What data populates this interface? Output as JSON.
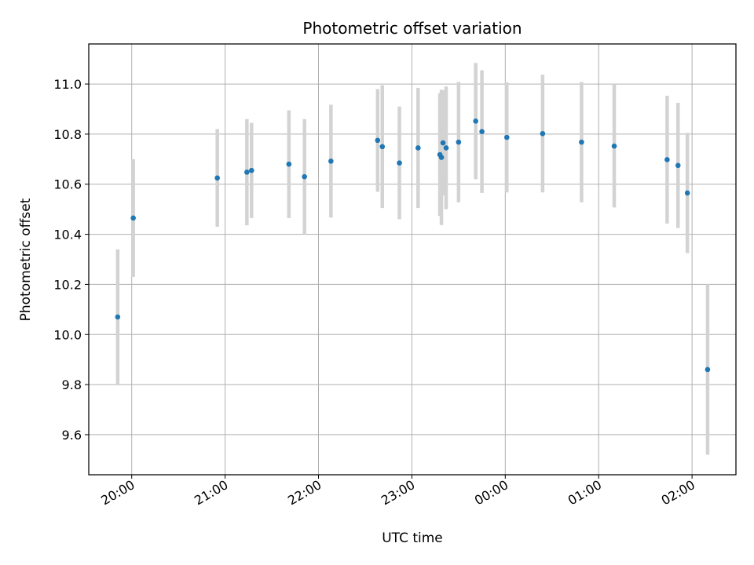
{
  "chart_data": {
    "type": "scatter",
    "title": "Photometric offset variation",
    "xlabel": "UTC time",
    "ylabel": "Photometric offset",
    "x_tick_labels": [
      "20:00",
      "21:00",
      "22:00",
      "23:00",
      "00:00",
      "01:00",
      "02:00"
    ],
    "y_tick_labels": [
      "9.6",
      "9.8",
      "10.0",
      "10.2",
      "10.4",
      "10.6",
      "10.8",
      "11.0"
    ],
    "x_ticks_hours": [
      20,
      21,
      22,
      23,
      24,
      25,
      26
    ],
    "y_ticks": [
      9.6,
      9.8,
      10.0,
      10.2,
      10.4,
      10.6,
      10.8,
      11.0
    ],
    "xlim_hours": [
      19.54,
      26.47
    ],
    "ylim": [
      9.44,
      11.16
    ],
    "grid": true,
    "series": [
      {
        "marker_color": "#1f77b4",
        "errorbar_color": "#d3d3d3",
        "points": [
          {
            "t": "19:51",
            "y": 10.07,
            "err": 0.27
          },
          {
            "t": "20:01",
            "y": 10.465,
            "err": 0.235
          },
          {
            "t": "20:55",
            "y": 10.625,
            "err": 0.195
          },
          {
            "t": "21:14",
            "y": 10.648,
            "err": 0.212
          },
          {
            "t": "21:17",
            "y": 10.655,
            "err": 0.19
          },
          {
            "t": "21:41",
            "y": 10.68,
            "err": 0.215
          },
          {
            "t": "21:51",
            "y": 10.63,
            "err": 0.23
          },
          {
            "t": "22:08",
            "y": 10.692,
            "err": 0.225
          },
          {
            "t": "22:38",
            "y": 10.775,
            "err": 0.205
          },
          {
            "t": "22:41",
            "y": 10.75,
            "err": 0.245
          },
          {
            "t": "22:52",
            "y": 10.685,
            "err": 0.225
          },
          {
            "t": "23:04",
            "y": 10.745,
            "err": 0.24
          },
          {
            "t": "23:18",
            "y": 10.718,
            "err": 0.245
          },
          {
            "t": "23:19",
            "y": 10.707,
            "err": 0.27
          },
          {
            "t": "23:20",
            "y": 10.765,
            "err": 0.21
          },
          {
            "t": "23:22",
            "y": 10.745,
            "err": 0.245
          },
          {
            "t": "23:30",
            "y": 10.768,
            "err": 0.24
          },
          {
            "t": "23:41",
            "y": 10.852,
            "err": 0.232
          },
          {
            "t": "23:45",
            "y": 10.81,
            "err": 0.245
          },
          {
            "t": "00:01",
            "y": 10.787,
            "err": 0.22
          },
          {
            "t": "00:24",
            "y": 10.802,
            "err": 0.235
          },
          {
            "t": "00:49",
            "y": 10.768,
            "err": 0.24
          },
          {
            "t": "01:10",
            "y": 10.752,
            "err": 0.245
          },
          {
            "t": "01:44",
            "y": 10.698,
            "err": 0.255
          },
          {
            "t": "01:51",
            "y": 10.675,
            "err": 0.25
          },
          {
            "t": "01:57",
            "y": 10.565,
            "err": 0.24
          },
          {
            "t": "02:10",
            "y": 9.86,
            "err": 0.34
          }
        ]
      }
    ]
  }
}
